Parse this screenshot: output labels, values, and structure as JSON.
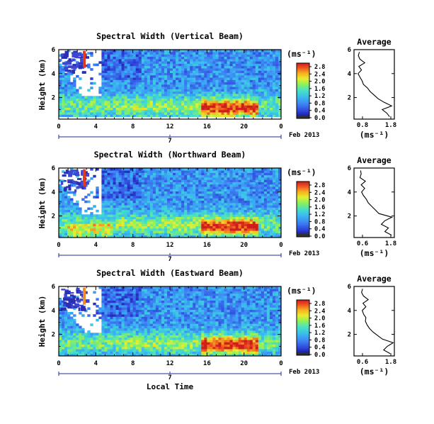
{
  "chart_data": [
    {
      "type": "heatmap",
      "title": "Spectral Width (Vertical Beam)",
      "ylabel": "Height (km)",
      "x_tick_labels": [
        "0",
        "4",
        "8",
        "12",
        "16",
        "20",
        "0"
      ],
      "y_tick_labels": [
        "2",
        "4",
        "6"
      ],
      "xlim": [
        0,
        24
      ],
      "ylim": [
        0.2,
        6.0
      ],
      "date_axis": {
        "day": "7",
        "month_label": "Feb 2013"
      },
      "colorbar": {
        "unit": "(ms⁻¹)",
        "ticks": [
          "0.0",
          "0.4",
          "0.8",
          "1.2",
          "1.6",
          "2.0",
          "2.4",
          "2.8"
        ]
      },
      "profile": {
        "title": "Average",
        "xlabel": "(ms⁻¹)",
        "x_tick_labels": [
          "0.8",
          "1.8"
        ],
        "xlim": [
          0.5,
          2.0
        ],
        "y_tick_labels": [
          "2",
          "4",
          "6"
        ],
        "ylim": [
          0.2,
          6.0
        ],
        "points": [
          [
            1.82,
            0.4
          ],
          [
            1.72,
            0.7
          ],
          [
            1.55,
            1.0
          ],
          [
            1.9,
            1.3
          ],
          [
            1.62,
            1.6
          ],
          [
            1.4,
            1.9
          ],
          [
            1.25,
            2.2
          ],
          [
            1.1,
            2.5
          ],
          [
            1.0,
            2.8
          ],
          [
            0.85,
            3.1
          ],
          [
            0.8,
            3.4
          ],
          [
            0.72,
            3.7
          ],
          [
            0.65,
            4.0
          ],
          [
            0.78,
            4.3
          ],
          [
            0.68,
            4.6
          ],
          [
            0.9,
            4.9
          ],
          [
            0.72,
            5.2
          ],
          [
            0.66,
            5.5
          ],
          [
            0.7,
            5.8
          ]
        ]
      }
    },
    {
      "type": "heatmap",
      "title": "Spectral Width (Northward Beam)",
      "ylabel": "Height (km)",
      "x_tick_labels": [
        "0",
        "4",
        "8",
        "12",
        "16",
        "20",
        "0"
      ],
      "y_tick_labels": [
        "2",
        "4",
        "6"
      ],
      "xlim": [
        0,
        24
      ],
      "ylim": [
        0.2,
        6.0
      ],
      "date_axis": {
        "day": "7",
        "month_label": "Feb 2013"
      },
      "colorbar": {
        "unit": "(ms⁻¹)",
        "ticks": [
          "0.0",
          "0.4",
          "0.8",
          "1.2",
          "1.6",
          "2.0",
          "2.4",
          "2.8"
        ]
      },
      "profile": {
        "title": "Average",
        "xlabel": "(ms⁻¹)",
        "x_tick_labels": [
          "0.6",
          "1.8"
        ],
        "xlim": [
          0.3,
          2.0
        ],
        "y_tick_labels": [
          "2",
          "4",
          "6"
        ],
        "ylim": [
          0.2,
          6.0
        ],
        "points": [
          [
            1.88,
            0.4
          ],
          [
            1.6,
            0.7
          ],
          [
            1.75,
            1.0
          ],
          [
            1.45,
            1.3
          ],
          [
            1.6,
            1.6
          ],
          [
            1.9,
            1.9
          ],
          [
            1.35,
            2.2
          ],
          [
            1.2,
            2.5
          ],
          [
            1.05,
            2.8
          ],
          [
            0.9,
            3.1
          ],
          [
            0.82,
            3.4
          ],
          [
            0.7,
            3.7
          ],
          [
            0.62,
            4.0
          ],
          [
            0.75,
            4.3
          ],
          [
            0.6,
            4.6
          ],
          [
            0.78,
            4.9
          ],
          [
            0.55,
            5.2
          ],
          [
            0.6,
            5.5
          ],
          [
            0.58,
            5.8
          ]
        ]
      }
    },
    {
      "type": "heatmap",
      "title": "Spectral Width (Eastward Beam)",
      "ylabel": "Height (km)",
      "xlabel": "Local Time",
      "x_tick_labels": [
        "0",
        "4",
        "8",
        "12",
        "16",
        "20",
        "0"
      ],
      "y_tick_labels": [
        "2",
        "4",
        "6"
      ],
      "xlim": [
        0,
        24
      ],
      "ylim": [
        0.2,
        6.0
      ],
      "date_axis": {
        "day": "7",
        "month_label": "Feb 2013"
      },
      "colorbar": {
        "unit": "(ms⁻¹)",
        "ticks": [
          "0.0",
          "0.4",
          "0.8",
          "1.2",
          "1.6",
          "2.0",
          "2.4",
          "2.8"
        ]
      },
      "profile": {
        "title": "Average",
        "xlabel": "(ms⁻¹)",
        "x_tick_labels": [
          "0.6",
          "1.8"
        ],
        "xlim": [
          0.3,
          2.0
        ],
        "y_tick_labels": [
          "2",
          "4",
          "6"
        ],
        "ylim": [
          0.2,
          6.0
        ],
        "points": [
          [
            1.82,
            0.4
          ],
          [
            1.55,
            0.7
          ],
          [
            1.7,
            1.0
          ],
          [
            1.95,
            1.3
          ],
          [
            1.5,
            1.6
          ],
          [
            1.3,
            1.9
          ],
          [
            1.1,
            2.2
          ],
          [
            0.95,
            2.5
          ],
          [
            0.85,
            2.8
          ],
          [
            0.78,
            3.1
          ],
          [
            0.8,
            3.4
          ],
          [
            0.7,
            3.7
          ],
          [
            0.65,
            4.0
          ],
          [
            0.8,
            4.3
          ],
          [
            0.68,
            4.6
          ],
          [
            0.9,
            4.9
          ],
          [
            0.7,
            5.2
          ],
          [
            0.62,
            5.5
          ],
          [
            0.66,
            5.8
          ]
        ]
      }
    }
  ]
}
